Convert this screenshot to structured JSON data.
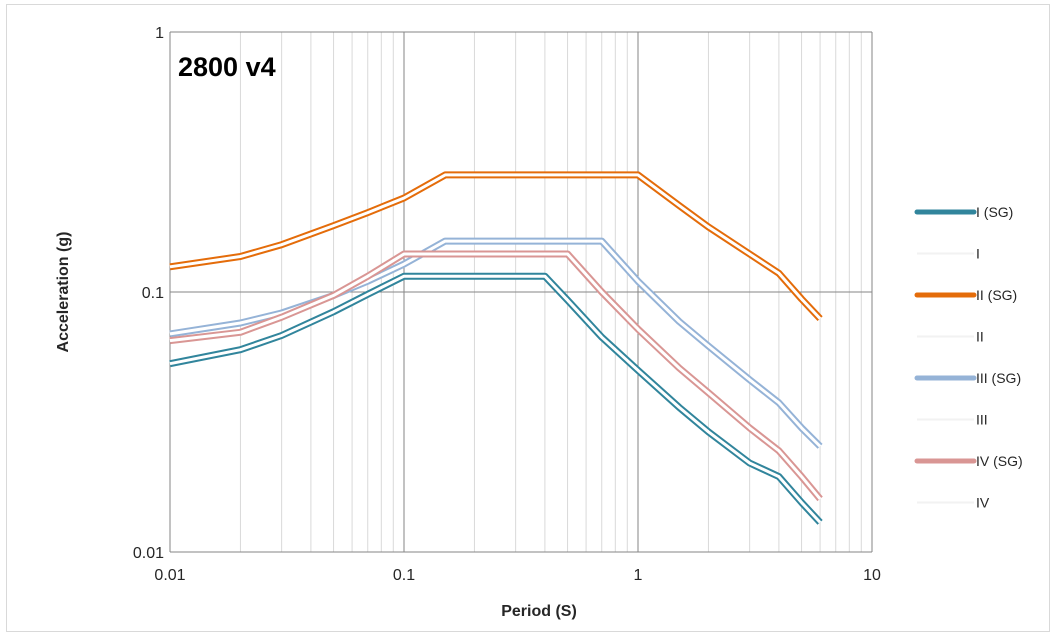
{
  "chart_data": {
    "type": "line",
    "title": "2800 v4",
    "xlabel": "Period (S)",
    "ylabel": "Acceleration (g)",
    "x_scale": "log",
    "y_scale": "log",
    "xlim": [
      0.01,
      10
    ],
    "ylim": [
      0.01,
      1
    ],
    "x_ticks": [
      "0.01",
      "0.1",
      "1",
      "10"
    ],
    "y_ticks": [
      "0.01",
      "0.1",
      "1"
    ],
    "grid": true,
    "legend_position": "right",
    "series": [
      {
        "name": "I (SG)",
        "color": "#31859c",
        "style": "double",
        "x": [
          0.01,
          0.02,
          0.03,
          0.05,
          0.07,
          0.1,
          0.15,
          0.2,
          0.3,
          0.4,
          0.5,
          0.7,
          1,
          1.5,
          2,
          3,
          4,
          5,
          6
        ],
        "y": [
          0.053,
          0.06,
          0.068,
          0.084,
          0.098,
          0.115,
          0.115,
          0.115,
          0.115,
          0.115,
          0.093,
          0.067,
          0.05,
          0.036,
          0.029,
          0.022,
          0.0195,
          0.0155,
          0.013
        ]
      },
      {
        "name": "I",
        "color": "#f2f2f2",
        "style": "plain",
        "x": [],
        "y": []
      },
      {
        "name": "II (SG)",
        "color": "#e46c0a",
        "style": "double",
        "x": [
          0.01,
          0.02,
          0.03,
          0.05,
          0.07,
          0.1,
          0.15,
          0.2,
          0.3,
          0.5,
          0.7,
          1,
          1.5,
          2,
          3,
          4,
          5,
          6
        ],
        "y": [
          0.125,
          0.137,
          0.152,
          0.18,
          0.202,
          0.23,
          0.282,
          0.282,
          0.282,
          0.282,
          0.282,
          0.282,
          0.215,
          0.178,
          0.14,
          0.118,
          0.094,
          0.079
        ]
      },
      {
        "name": "II",
        "color": "#f2f2f2",
        "style": "plain",
        "x": [],
        "y": []
      },
      {
        "name": "III (SG)",
        "color": "#95b3d7",
        "style": "double",
        "x": [
          0.01,
          0.02,
          0.03,
          0.05,
          0.07,
          0.1,
          0.15,
          0.2,
          0.3,
          0.5,
          0.7,
          1,
          1.5,
          2,
          3,
          4,
          5,
          6
        ],
        "y": [
          0.069,
          0.076,
          0.083,
          0.097,
          0.11,
          0.128,
          0.157,
          0.157,
          0.157,
          0.157,
          0.157,
          0.11,
          0.077,
          0.062,
          0.046,
          0.0375,
          0.03,
          0.0255
        ]
      },
      {
        "name": "III",
        "color": "#f2f2f2",
        "style": "plain",
        "x": [],
        "y": []
      },
      {
        "name": "IV (SG)",
        "color": "#d99694",
        "style": "double",
        "x": [
          0.01,
          0.02,
          0.03,
          0.05,
          0.07,
          0.1,
          0.15,
          0.2,
          0.3,
          0.5,
          0.7,
          1,
          1.5,
          2,
          3,
          4,
          5,
          6
        ],
        "y": [
          0.065,
          0.07,
          0.08,
          0.097,
          0.115,
          0.14,
          0.14,
          0.14,
          0.14,
          0.14,
          0.1,
          0.072,
          0.051,
          0.041,
          0.03,
          0.0245,
          0.0195,
          0.016
        ]
      },
      {
        "name": "IV",
        "color": "#f2f2f2",
        "style": "plain",
        "x": [],
        "y": []
      }
    ]
  }
}
